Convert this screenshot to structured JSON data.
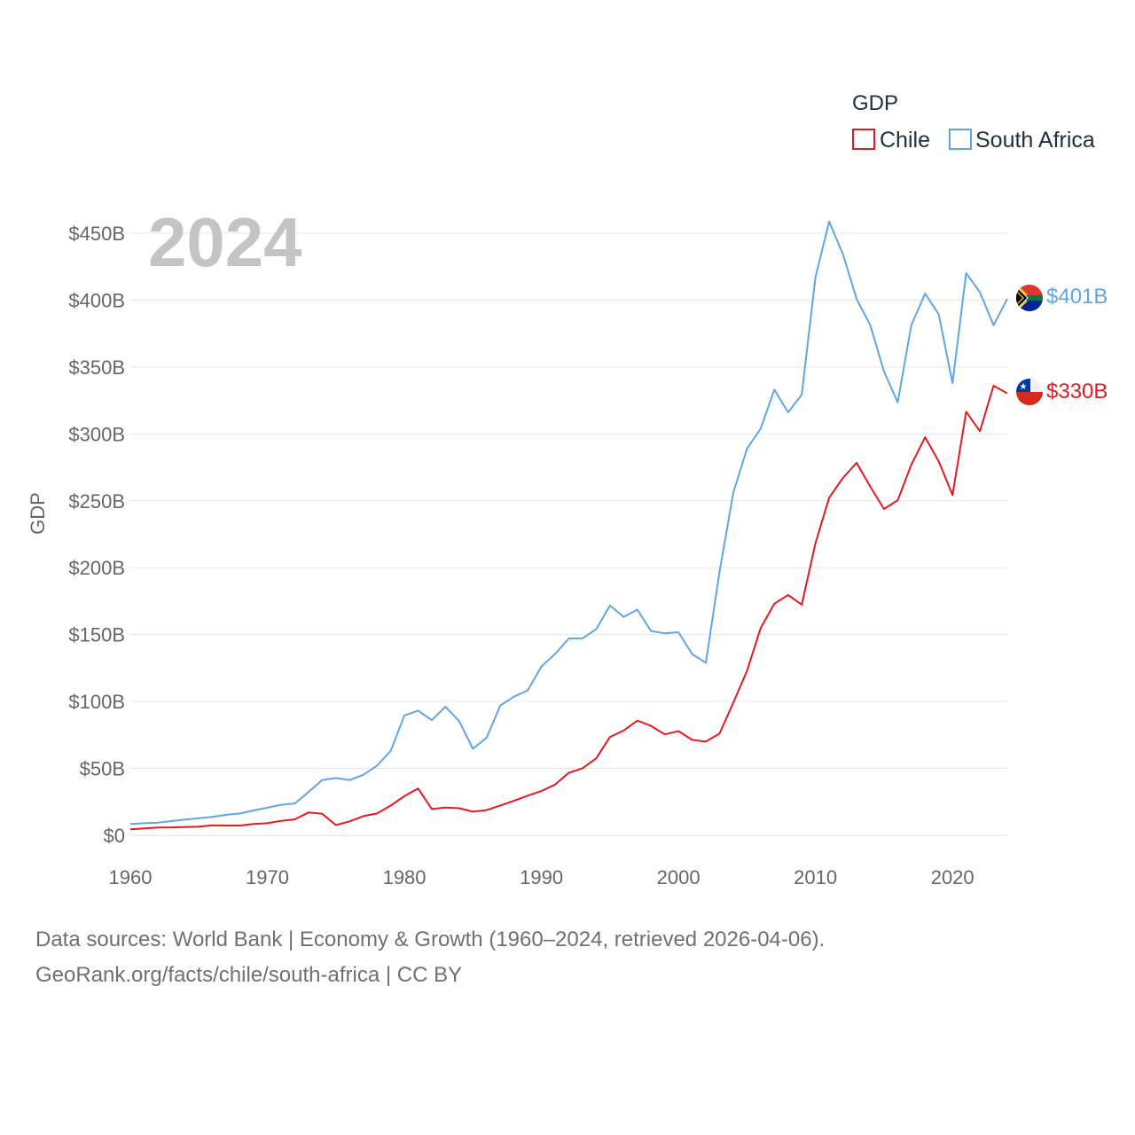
{
  "chart_data": {
    "type": "line",
    "title": "GDP",
    "big_year": "2024",
    "ylabel": "GDP",
    "xlabel": "",
    "xlim": [
      1960,
      2024
    ],
    "ylim": [
      0,
      460
    ],
    "x_ticks": [
      1960,
      1970,
      1980,
      1990,
      2000,
      2010,
      2020
    ],
    "y_ticks": [
      0,
      50,
      100,
      150,
      200,
      250,
      300,
      350,
      400,
      450
    ],
    "y_tick_labels": [
      "$0",
      "$50B",
      "$100B",
      "$150B",
      "$200B",
      "$250B",
      "$300B",
      "$350B",
      "$400B",
      "$450B"
    ],
    "units": "billions USD",
    "legend_position": "top-right",
    "x": [
      1960,
      1961,
      1962,
      1963,
      1964,
      1965,
      1966,
      1967,
      1968,
      1969,
      1970,
      1971,
      1972,
      1973,
      1974,
      1975,
      1976,
      1977,
      1978,
      1979,
      1980,
      1981,
      1982,
      1983,
      1984,
      1985,
      1986,
      1987,
      1988,
      1989,
      1990,
      1991,
      1992,
      1993,
      1994,
      1995,
      1996,
      1997,
      1998,
      1999,
      2000,
      2001,
      2002,
      2003,
      2004,
      2005,
      2006,
      2007,
      2008,
      2009,
      2010,
      2011,
      2012,
      2013,
      2014,
      2015,
      2016,
      2017,
      2018,
      2019,
      2020,
      2021,
      2022,
      2023,
      2024
    ],
    "series": [
      {
        "name": "Chile",
        "color": "#e8191e",
        "end_label": "$330B",
        "values": [
          4.5,
          5.2,
          5.8,
          5.9,
          6.2,
          6.5,
          7.4,
          7.3,
          7.3,
          8.4,
          9.0,
          10.8,
          11.9,
          17.0,
          16.1,
          7.6,
          10.4,
          14.3,
          16.3,
          22.2,
          29.3,
          35.0,
          19.6,
          20.7,
          20.2,
          17.6,
          18.8,
          22.3,
          25.8,
          29.6,
          33.1,
          37.9,
          46.7,
          50.1,
          57.5,
          73.5,
          78.3,
          85.7,
          81.8,
          75.4,
          77.9,
          71.3,
          70.0,
          76.1,
          99.0,
          122.9,
          154.8,
          173.1,
          179.6,
          172.4,
          218.5,
          252.3,
          267.1,
          278.4,
          260.5,
          243.9,
          250.4,
          277.1,
          297.5,
          279.4,
          254.3,
          316.6,
          302.0,
          336.0,
          330.3
        ]
      },
      {
        "name": "South Africa",
        "color": "#5ea6e6",
        "end_label": "$401B",
        "values": [
          8.4,
          9.0,
          9.5,
          10.6,
          11.7,
          12.7,
          13.8,
          15.3,
          16.3,
          18.6,
          20.6,
          22.8,
          23.8,
          32.3,
          41.3,
          42.8,
          41.3,
          45.2,
          52.0,
          63.1,
          89.6,
          93.2,
          86.0,
          96.1,
          85.3,
          64.6,
          73.0,
          97.0,
          103.6,
          108.3,
          126.1,
          135.5,
          147.1,
          147.2,
          154.0,
          171.7,
          163.2,
          168.7,
          152.6,
          151.0,
          151.8,
          135.4,
          128.9,
          197.0,
          255.8,
          288.9,
          303.9,
          333.1,
          316.1,
          329.4,
          417.4,
          458.7,
          434.4,
          400.9,
          381.2,
          346.7,
          323.6,
          381.4,
          404.9,
          389.3,
          338.0,
          420.1,
          405.9,
          381.2,
          401.0
        ]
      }
    ]
  },
  "sources": {
    "line1": "Data sources: World Bank | Economy & Growth (1960–2024, retrieved 2026-04-06).",
    "line2": "GeoRank.org/facts/chile/south-africa | CC BY"
  },
  "icons": {
    "south_africa_flag": "south-africa-flag-icon",
    "chile_flag": "chile-flag-icon"
  }
}
